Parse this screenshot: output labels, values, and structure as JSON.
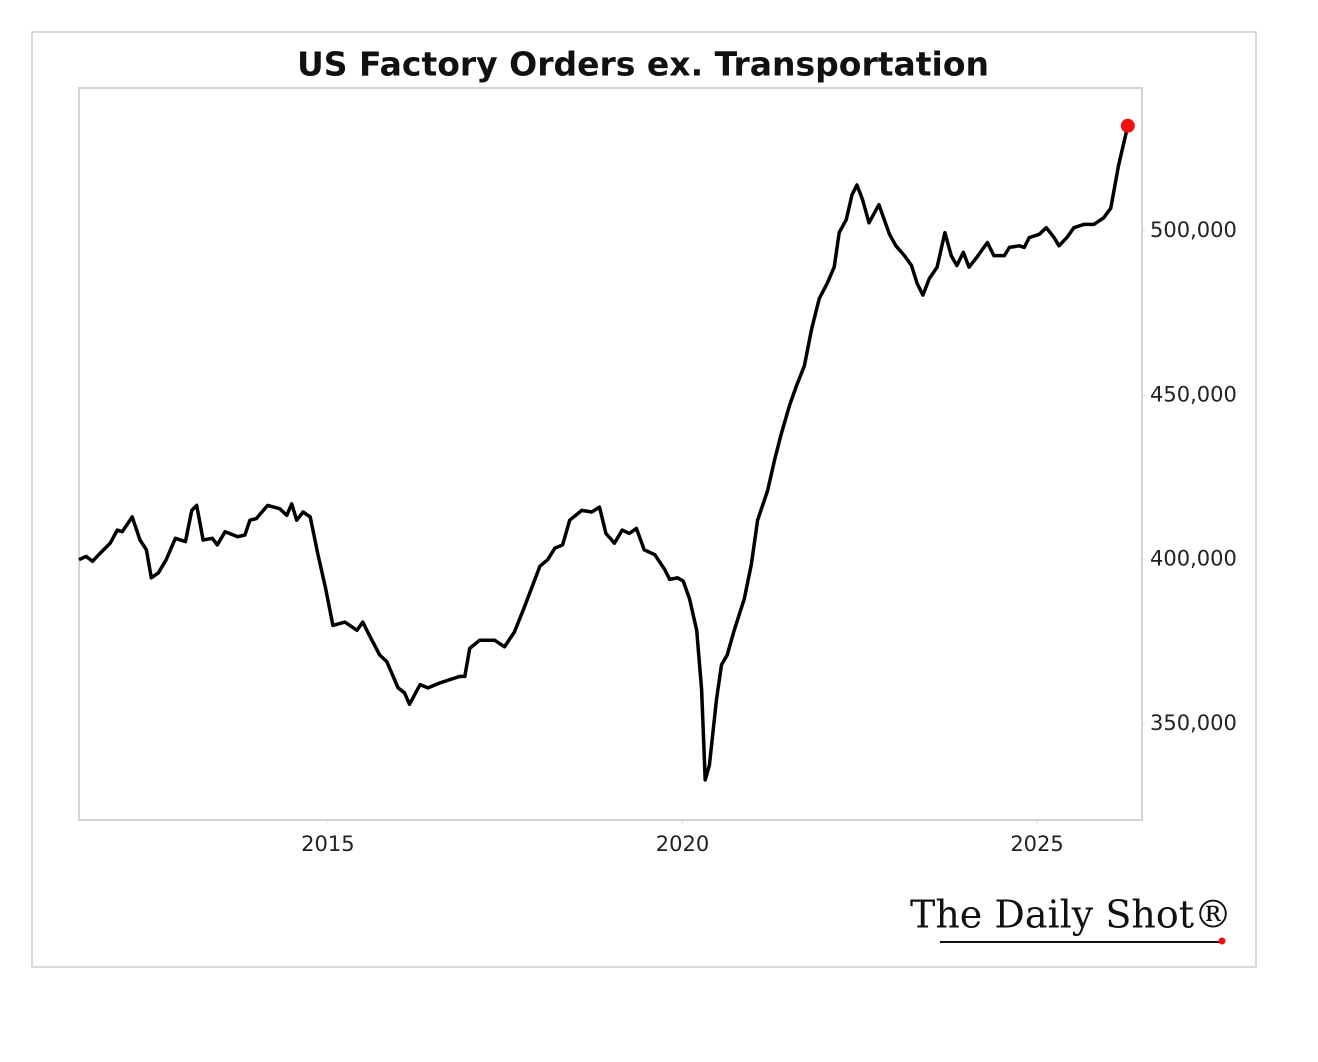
{
  "chart_data": {
    "type": "line",
    "title": "US Factory Orders ex. Transportation",
    "x": [
      2011.49,
      2011.59,
      2011.68,
      2011.79,
      2011.93,
      2012.03,
      2012.1,
      2012.24,
      2012.35,
      2012.44,
      2012.51,
      2012.61,
      2012.72,
      2012.85,
      2012.99,
      2013.08,
      2013.15,
      2013.24,
      2013.37,
      2013.44,
      2013.55,
      2013.73,
      2013.83,
      2013.9,
      2013.99,
      2014.15,
      2014.32,
      2014.42,
      2014.49,
      2014.56,
      2014.65,
      2014.75,
      2014.86,
      2014.97,
      2015.07,
      2015.24,
      2015.41,
      2015.49,
      2015.62,
      2015.73,
      2015.83,
      2015.99,
      2016.08,
      2016.15,
      2016.3,
      2016.41,
      2016.58,
      2016.72,
      2016.86,
      2016.93,
      2017.0,
      2017.14,
      2017.35,
      2017.49,
      2017.63,
      2017.77,
      2017.99,
      2018.1,
      2018.2,
      2018.31,
      2018.41,
      2018.58,
      2018.72,
      2018.83,
      2018.92,
      2019.04,
      2019.15,
      2019.25,
      2019.35,
      2019.46,
      2019.61,
      2019.75,
      2019.82,
      2019.93,
      2020.01,
      2020.1,
      2020.2,
      2020.27,
      2020.32,
      2020.38,
      2020.48,
      2020.55,
      2020.63,
      2020.73,
      2020.87,
      2020.97,
      2021.06,
      2021.2,
      2021.3,
      2021.39,
      2021.51,
      2021.61,
      2021.72,
      2021.82,
      2021.93,
      2022.04,
      2022.14,
      2022.21,
      2022.31,
      2022.39,
      2022.46,
      2022.54,
      2022.63,
      2022.77,
      2022.92,
      2023.01,
      2023.13,
      2023.23,
      2023.31,
      2023.39,
      2023.48,
      2023.59,
      2023.7,
      2023.79,
      2023.87,
      2023.96,
      2024.04,
      2024.15,
      2024.3,
      2024.39,
      2024.54,
      2024.61,
      2024.75,
      2024.82,
      2024.89,
      2025.03,
      2025.13,
      2025.24,
      2025.31,
      2025.42,
      2025.52,
      2025.66,
      2025.8,
      2025.94,
      2026.04,
      2026.15,
      2026.28
    ],
    "values": [
      400000,
      401000,
      399500,
      402000,
      405000,
      409000,
      408500,
      413000,
      406000,
      403000,
      394500,
      396000,
      400000,
      406500,
      405500,
      415000,
      416500,
      406000,
      406500,
      404500,
      408500,
      407000,
      407500,
      412000,
      412500,
      416500,
      415500,
      413500,
      417000,
      412000,
      414500,
      413000,
      401500,
      391000,
      380000,
      381000,
      378500,
      381000,
      375500,
      371000,
      369000,
      361000,
      359500,
      356000,
      362000,
      361000,
      362500,
      363500,
      364500,
      364500,
      373000,
      375500,
      375500,
      373500,
      378000,
      385500,
      398000,
      400000,
      403500,
      404500,
      412000,
      415000,
      414500,
      416000,
      408000,
      405000,
      409000,
      408000,
      409500,
      403000,
      401500,
      397000,
      394000,
      394500,
      393500,
      388000,
      378500,
      360500,
      333000,
      337500,
      357500,
      368000,
      371000,
      378500,
      388000,
      398500,
      412000,
      421000,
      430500,
      438000,
      447000,
      453000,
      459000,
      470000,
      479500,
      484000,
      489000,
      499500,
      503500,
      511000,
      514000,
      509500,
      502500,
      508000,
      499000,
      495500,
      492500,
      489500,
      484000,
      480500,
      485500,
      489000,
      499500,
      492500,
      489500,
      493500,
      489000,
      492000,
      496500,
      492500,
      492500,
      495000,
      495500,
      495000,
      498000,
      499000,
      501000,
      498000,
      495500,
      498000,
      501000,
      502000,
      502000,
      504000,
      507000,
      520000,
      532000
    ],
    "color": "#000000",
    "last_point_color": "#ee1111",
    "xlim": [
      2011.49,
      2026.48
    ],
    "xticks": [
      2015,
      2020,
      2025
    ],
    "ylim": [
      320800,
      543500
    ],
    "yticks": [
      {
        "value": 350000,
        "label": "350,000"
      },
      {
        "value": 400000,
        "label": "400,000"
      },
      {
        "value": 450000,
        "label": "450,000"
      },
      {
        "value": 500000,
        "label": "500,000"
      }
    ],
    "grid": false
  },
  "brand": "The Daily Shot®"
}
